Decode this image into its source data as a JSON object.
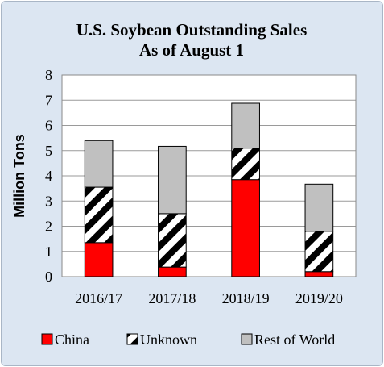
{
  "chart_data": {
    "type": "bar",
    "stacked": true,
    "title_lines": [
      "U.S. Soybean Outstanding Sales",
      "As of August 1"
    ],
    "xlabel": "",
    "ylabel": "Million Tons",
    "ylim": [
      0,
      8
    ],
    "yticks": [
      "0",
      "1",
      "2",
      "3",
      "4",
      "5",
      "6",
      "7",
      "8"
    ],
    "grid": true,
    "legend_position": "bottom",
    "categories": [
      "2016/17",
      "2017/18",
      "2018/19",
      "2019/20"
    ],
    "series": [
      {
        "name": "China",
        "values": [
          1.35,
          0.38,
          3.85,
          0.2
        ],
        "color": "#ff0000",
        "pattern": "solid"
      },
      {
        "name": "Unknown",
        "values": [
          2.2,
          2.12,
          1.25,
          1.6
        ],
        "color": "#000000",
        "pattern": "diagonal-hatch"
      },
      {
        "name": "Rest of World",
        "values": [
          1.85,
          2.67,
          1.78,
          1.87
        ],
        "color": "#c0c0c0",
        "pattern": "solid"
      }
    ]
  }
}
